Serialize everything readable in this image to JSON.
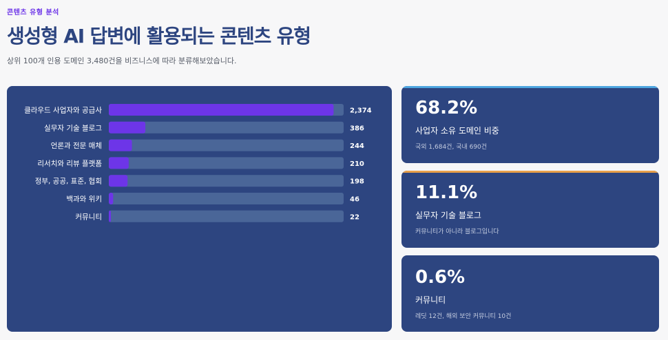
{
  "header": {
    "eyebrow": "콘텐츠 유형 분석",
    "title": "생성형 AI 답변에 활용되는 콘텐츠 유형",
    "subtitle": "상위 100개 인용 도메인 3,480건을 비즈니스에 따라 분류해보았습니다."
  },
  "colors": {
    "panel": "#2d4580",
    "track": "#4a6698",
    "bar": "#6d35e8",
    "card1_accent": "#4ea6e0",
    "card2_accent": "#e8a04a",
    "card3_accent": "#2d4580"
  },
  "chart_data": {
    "type": "bar",
    "orientation": "horizontal",
    "categories": [
      "클라우드 사업자와 공급사",
      "실무자 기술 블로그",
      "언론과 전문 매체",
      "리서치와 리뷰 플랫폼",
      "정부, 공공, 표준, 협회",
      "백과와 위키",
      "커뮤니티"
    ],
    "values": [
      2374,
      386,
      244,
      210,
      198,
      46,
      22
    ],
    "value_labels": [
      "2,374",
      "386",
      "244",
      "210",
      "198",
      "46",
      "22"
    ],
    "xlim": [
      0,
      2480
    ],
    "grid": false
  },
  "stats": [
    {
      "value": "68.2%",
      "label": "사업자 소유 도메인 비중",
      "detail": "국외 1,684건, 국내 690건"
    },
    {
      "value": "11.1%",
      "label": "실무자 기술 블로그",
      "detail": "커뮤니티가 아니라 블로그입니다"
    },
    {
      "value": "0.6%",
      "label": "커뮤니티",
      "detail": "레딧 12건, 해외 보안 커뮤니티 10건"
    }
  ]
}
